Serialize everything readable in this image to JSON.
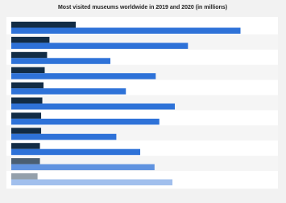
{
  "chart_data": {
    "type": "bar",
    "orientation": "horizontal",
    "title": "Most visited museums worldwide in 2019 and 2020 (in millions)",
    "categories": [
      null,
      null,
      null,
      null,
      null,
      null,
      null,
      null,
      null,
      null,
      null
    ],
    "series": [
      {
        "color": "#122c45",
        "values": [
          2.7,
          1.6,
          1.5,
          1.4,
          1.35,
          1.3,
          1.25,
          1.25,
          1.2,
          1.2,
          1.1
        ]
      },
      {
        "color": "#2e72d8",
        "values": [
          9.6,
          7.4,
          4.15,
          6.05,
          4.8,
          6.85,
          6.2,
          4.4,
          5.4,
          6.0,
          6.75
        ]
      }
    ],
    "xlim": [
      0,
      11
    ]
  }
}
